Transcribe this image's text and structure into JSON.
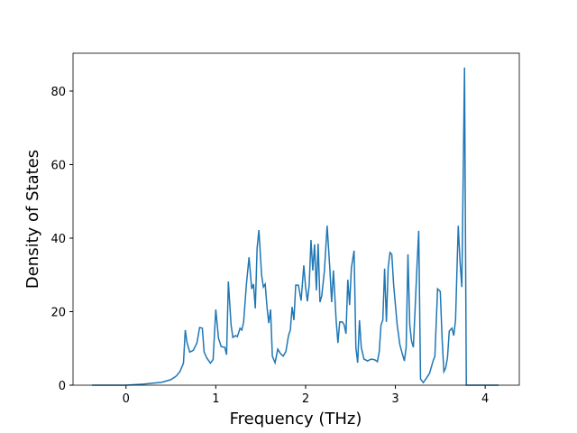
{
  "chart_data": {
    "type": "line",
    "x_label": "Frequency (THz)",
    "y_label": "Density of States",
    "x": [
      -0.38,
      0,
      0.2,
      0.4,
      0.5,
      0.56,
      0.6,
      0.64,
      0.66,
      0.68,
      0.71,
      0.75,
      0.79,
      0.82,
      0.85,
      0.87,
      0.9,
      0.94,
      0.97,
      1.0,
      1.03,
      1.06,
      1.1,
      1.12,
      1.14,
      1.17,
      1.19,
      1.22,
      1.24,
      1.27,
      1.29,
      1.31,
      1.34,
      1.37,
      1.4,
      1.42,
      1.44,
      1.46,
      1.48,
      1.51,
      1.53,
      1.55,
      1.57,
      1.59,
      1.61,
      1.63,
      1.66,
      1.69,
      1.72,
      1.75,
      1.78,
      1.81,
      1.83,
      1.85,
      1.87,
      1.89,
      1.92,
      1.95,
      1.98,
      2.0,
      2.02,
      2.04,
      2.06,
      2.08,
      2.1,
      2.12,
      2.14,
      2.16,
      2.18,
      2.21,
      2.24,
      2.27,
      2.29,
      2.31,
      2.34,
      2.36,
      2.38,
      2.41,
      2.43,
      2.45,
      2.47,
      2.49,
      2.51,
      2.54,
      2.56,
      2.58,
      2.6,
      2.62,
      2.65,
      2.69,
      2.73,
      2.77,
      2.8,
      2.82,
      2.84,
      2.86,
      2.88,
      2.9,
      2.92,
      2.94,
      2.96,
      2.98,
      3.02,
      3.05,
      3.08,
      3.1,
      3.12,
      3.14,
      3.16,
      3.18,
      3.2,
      3.22,
      3.24,
      3.26,
      3.28,
      3.31,
      3.34,
      3.38,
      3.42,
      3.44,
      3.47,
      3.5,
      3.52,
      3.54,
      3.56,
      3.58,
      3.6,
      3.63,
      3.65,
      3.67,
      3.7,
      3.72,
      3.74,
      3.77,
      3.79,
      4.15
    ],
    "series": [
      {
        "color": "#1f77b4",
        "values": [
          0,
          0,
          0.3,
          0.8,
          1.5,
          2.5,
          3.7,
          6,
          15,
          11.5,
          9,
          9.5,
          11.5,
          15.7,
          15.5,
          9,
          7.4,
          6,
          7,
          20.6,
          12.8,
          10.5,
          10.3,
          8.3,
          28.2,
          16.4,
          13,
          13.5,
          13.2,
          15.5,
          15,
          17.2,
          27.2,
          34.8,
          26.2,
          27.5,
          20.9,
          37.3,
          42.2,
          30,
          26.7,
          27.5,
          21.3,
          16.9,
          20.6,
          7.9,
          6.1,
          9.8,
          8.6,
          7.9,
          9.1,
          13.5,
          15,
          21.3,
          17.7,
          27.2,
          27.2,
          23,
          32.6,
          26.7,
          22.8,
          27.2,
          39.5,
          31.2,
          38.3,
          25.8,
          38.5,
          22.6,
          24.3,
          31.2,
          43.4,
          31.7,
          22.6,
          31.2,
          17.7,
          11.5,
          17.2,
          17.2,
          16.4,
          14,
          28.7,
          21.8,
          31.9,
          36.6,
          10.3,
          6.1,
          17.7,
          10.3,
          7.1,
          6.6,
          7.1,
          6.9,
          6.4,
          9.1,
          16.4,
          17.7,
          31.7,
          17.2,
          32.1,
          36.1,
          35.6,
          27.5,
          16.4,
          11,
          8.3,
          6.6,
          10.3,
          35.6,
          16.4,
          12,
          10.3,
          20.9,
          32.1,
          42,
          1.7,
          0.7,
          1.7,
          3.2,
          6.6,
          7.9,
          26.2,
          25.5,
          12.8,
          3.7,
          4.7,
          7.4,
          14.7,
          15.5,
          13.5,
          17.7,
          43.4,
          33.6,
          26.7,
          86.4,
          0,
          0
        ]
      }
    ],
    "xlim": [
      -0.59,
      4.38
    ],
    "xticks": [
      0,
      1,
      2,
      3,
      4
    ],
    "ylim": [
      0,
      90.3
    ],
    "yticks": [
      0,
      20,
      40,
      60,
      80
    ]
  }
}
